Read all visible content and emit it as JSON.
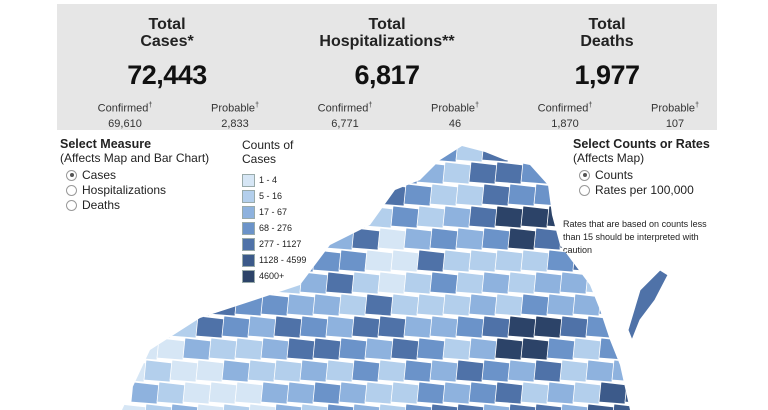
{
  "stats": [
    {
      "title1": "Total",
      "title2": "Cases*",
      "value": "72,443",
      "confirmed_label": "Confirmed",
      "confirmed": "69,610",
      "probable_label": "Probable",
      "probable": "2,833"
    },
    {
      "title1": "Total",
      "title2": "Hospitalizations**",
      "value": "6,817",
      "confirmed_label": "Confirmed",
      "confirmed": "6,771",
      "probable_label": "Probable",
      "probable": "46"
    },
    {
      "title1": "Total",
      "title2": "Deaths",
      "value": "1,977",
      "confirmed_label": "Confirmed",
      "confirmed": "1,870",
      "probable_label": "Probable",
      "probable": "107"
    }
  ],
  "dagger": "†",
  "measure": {
    "title": "Select Measure",
    "subtitle": "(Affects Map and Bar Chart)",
    "options": [
      "Cases",
      "Hospitalizations",
      "Deaths"
    ],
    "selected": "Cases"
  },
  "legend": {
    "title": "Counts of Cases",
    "items": [
      {
        "label": "1 - 4",
        "color": "#d6e6f5"
      },
      {
        "label": "5 - 16",
        "color": "#b3cfec"
      },
      {
        "label": "17 - 67",
        "color": "#8eb2de"
      },
      {
        "label": "68 - 276",
        "color": "#6b93c9"
      },
      {
        "label": "277 - 1127",
        "color": "#4f72a8"
      },
      {
        "label": "1128 - 4599",
        "color": "#3c5a8a"
      },
      {
        "label": "4600+",
        "color": "#2c4368"
      }
    ]
  },
  "counts_rates": {
    "title": "Select Counts or Rates",
    "subtitle": "(Affects Map)",
    "options": [
      "Counts",
      "Rates per 100,000"
    ],
    "selected": "Counts"
  },
  "note": "Rates that are based on counts less than 15 should be interpreted with caution"
}
